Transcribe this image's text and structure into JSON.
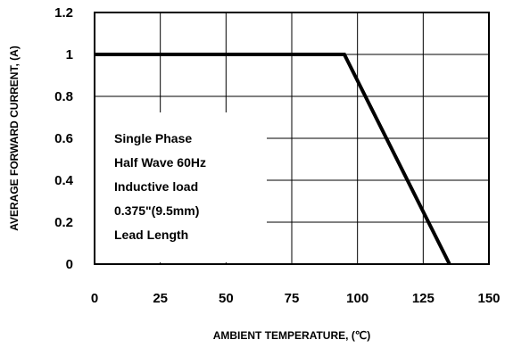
{
  "chart_data": {
    "type": "line",
    "title": "",
    "xlabel": "AMBIENT TEMPERATURE, (℃)",
    "ylabel": "AVERAGE FORWARD CURRENT, (A)",
    "xlim": [
      0,
      150
    ],
    "ylim": [
      0,
      1.2
    ],
    "x_ticks": [
      "0",
      "25",
      "50",
      "75",
      "100",
      "125",
      "150"
    ],
    "y_ticks": [
      "0",
      "0.2",
      "0.4",
      "0.6",
      "0.8",
      "1",
      "1.2"
    ],
    "grid": true,
    "series": [
      {
        "x": [
          0,
          95,
          135
        ],
        "y": [
          1.0,
          1.0,
          0.0
        ]
      }
    ],
    "annotation": [
      "Single Phase",
      "Half Wave 60Hz",
      "Inductive load",
      "0.375\"(9.5mm)",
      "Lead Length"
    ],
    "colors": {
      "line": "#000000",
      "grid": "#000000",
      "background": "#ffffff"
    }
  }
}
